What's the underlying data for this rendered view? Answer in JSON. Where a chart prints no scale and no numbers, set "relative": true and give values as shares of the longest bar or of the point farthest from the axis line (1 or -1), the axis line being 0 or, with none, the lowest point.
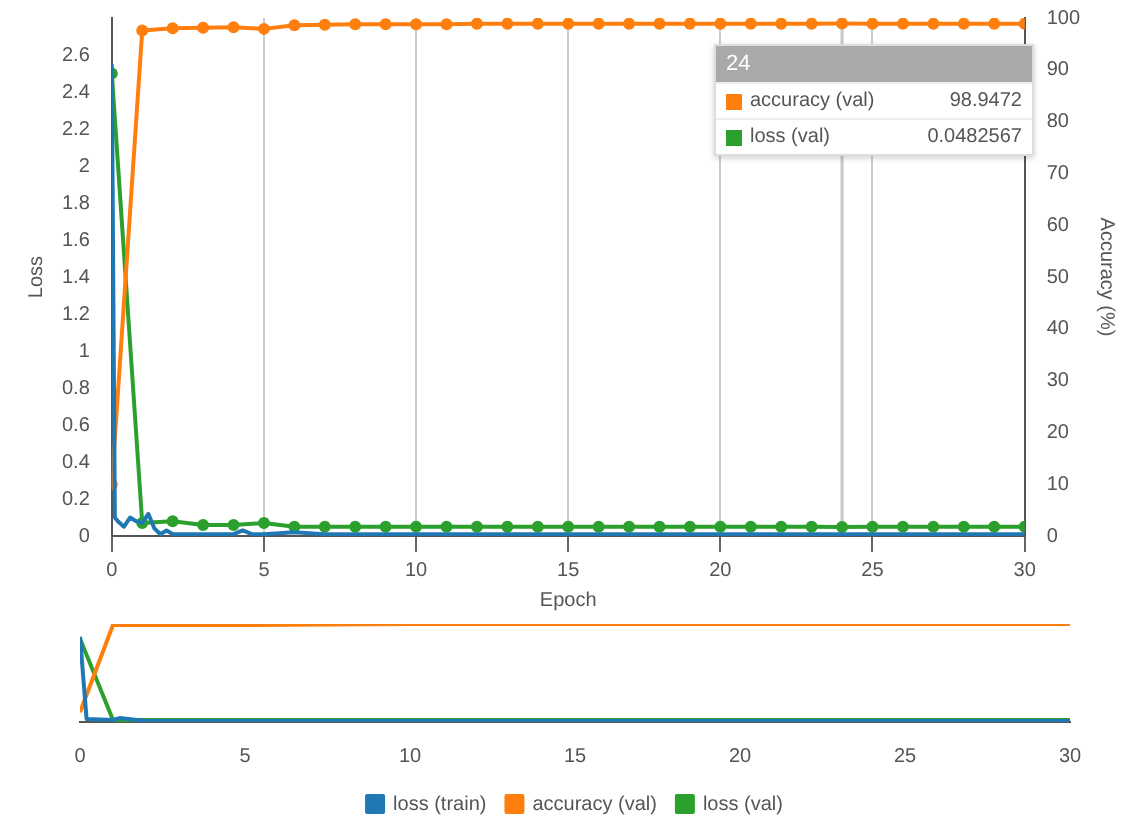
{
  "chart_data": [
    {
      "type": "line",
      "xlabel": "Epoch",
      "ylabel": "Loss",
      "y2label": "Accuracy (%)",
      "xlim": [
        0,
        30
      ],
      "xticks": [
        0,
        5,
        10,
        15,
        20,
        25,
        30
      ],
      "ylim": [
        0,
        2.8
      ],
      "yticks": [
        0,
        0.2,
        0.4,
        0.6,
        0.8,
        1,
        1.2,
        1.4,
        1.6,
        1.8,
        2,
        2.2,
        2.4,
        2.6
      ],
      "y2lim": [
        0,
        100
      ],
      "y2ticks": [
        0,
        10,
        20,
        30,
        40,
        50,
        60,
        70,
        80,
        90,
        100
      ],
      "grid": "x",
      "legend": "top right",
      "marker": "circle",
      "ref_lines": [
        {
          "axis": "x",
          "value": 24,
          "color": "#c8c8c8"
        }
      ],
      "annotations": [
        "24",
        "98.9472",
        "0.0482567"
      ],
      "series": [
        {
          "color": "#1f77b4",
          "marker": "none",
          "x": [
            0,
            0.1,
            0.2,
            0.4,
            0.6,
            0.8,
            1,
            1.2,
            1.4,
            1.6,
            1.8,
            2,
            2.5,
            3,
            3.5,
            4,
            4.3,
            4.6,
            5,
            6,
            7,
            8,
            10,
            12,
            15,
            18,
            20,
            22,
            25,
            28,
            30
          ],
          "values": [
            2.55,
            0.1,
            0.08,
            0.05,
            0.1,
            0.08,
            0.07,
            0.12,
            0.04,
            0.01,
            0.03,
            0.01,
            0.01,
            0.01,
            0.01,
            0.01,
            0.03,
            0.01,
            0.01,
            0.02,
            0.01,
            0.01,
            0.01,
            0.01,
            0.01,
            0.01,
            0.01,
            0.01,
            0.01,
            0.01,
            0.01
          ]
        },
        {
          "name": "accuracy (val)",
          "color": "#ff7f0e",
          "axis": "y2",
          "x": [
            0,
            1,
            2,
            3,
            4,
            5,
            6,
            7,
            8,
            9,
            10,
            11,
            12,
            13,
            14,
            15,
            16,
            17,
            18,
            19,
            20,
            21,
            22,
            23,
            24,
            25,
            26,
            27,
            28,
            29,
            30
          ],
          "values": [
            10,
            97.6,
            98,
            98.1,
            98.2,
            97.9,
            98.6,
            98.7,
            98.8,
            98.8,
            98.8,
            98.8,
            98.9,
            98.9,
            98.9,
            98.9,
            98.9,
            98.9,
            98.9,
            98.9,
            98.9,
            98.9,
            98.9,
            98.9,
            98.9472,
            98.9,
            98.9,
            98.9,
            98.9,
            98.9,
            98.9
          ]
        },
        {
          "name": "loss (val)",
          "color": "#2ca02c",
          "x": [
            0,
            1,
            2,
            3,
            4,
            5,
            6,
            7,
            8,
            9,
            10,
            11,
            12,
            13,
            14,
            15,
            16,
            17,
            18,
            19,
            20,
            21,
            22,
            23,
            24,
            25,
            26,
            27,
            28,
            29,
            30
          ],
          "values": [
            2.5,
            0.07,
            0.08,
            0.06,
            0.06,
            0.07,
            0.05,
            0.05,
            0.05,
            0.05,
            0.05,
            0.05,
            0.05,
            0.05,
            0.05,
            0.05,
            0.05,
            0.05,
            0.05,
            0.05,
            0.05,
            0.05,
            0.05,
            0.05,
            0.0482567,
            0.05,
            0.05,
            0.05,
            0.05,
            0.05,
            0.05
          ]
        }
      ]
    },
    {
      "type": "line",
      "relative": true,
      "xlim": [
        0,
        30
      ],
      "xticks": [
        0,
        5,
        10,
        15,
        20,
        25,
        30
      ],
      "tick_labels": "x",
      "legend": "bottom",
      "series": [
        {
          "name": "loss (train)",
          "color": "#1f77b4",
          "x": [
            0,
            0.2,
            1,
            1.2,
            2,
            5,
            10,
            15,
            20,
            25,
            30
          ],
          "values": [
            0.87,
            0.03,
            0.02,
            0.04,
            0.01,
            0.01,
            0.01,
            0.01,
            0.01,
            0.01,
            0.01
          ]
        },
        {
          "name": "accuracy (val)",
          "color": "#ff7f0e",
          "x": [
            0,
            1,
            5,
            10,
            15,
            20,
            25,
            30
          ],
          "values": [
            0.1,
            0.99,
            0.99,
            1,
            1,
            1,
            1,
            1
          ]
        },
        {
          "name": "loss (val)",
          "color": "#2ca02c",
          "x": [
            0,
            1,
            2,
            5,
            10,
            15,
            20,
            25,
            30
          ],
          "values": [
            0.85,
            0.02,
            0.02,
            0.02,
            0.02,
            0.02,
            0.02,
            0.02,
            0.02
          ]
        }
      ]
    }
  ]
}
